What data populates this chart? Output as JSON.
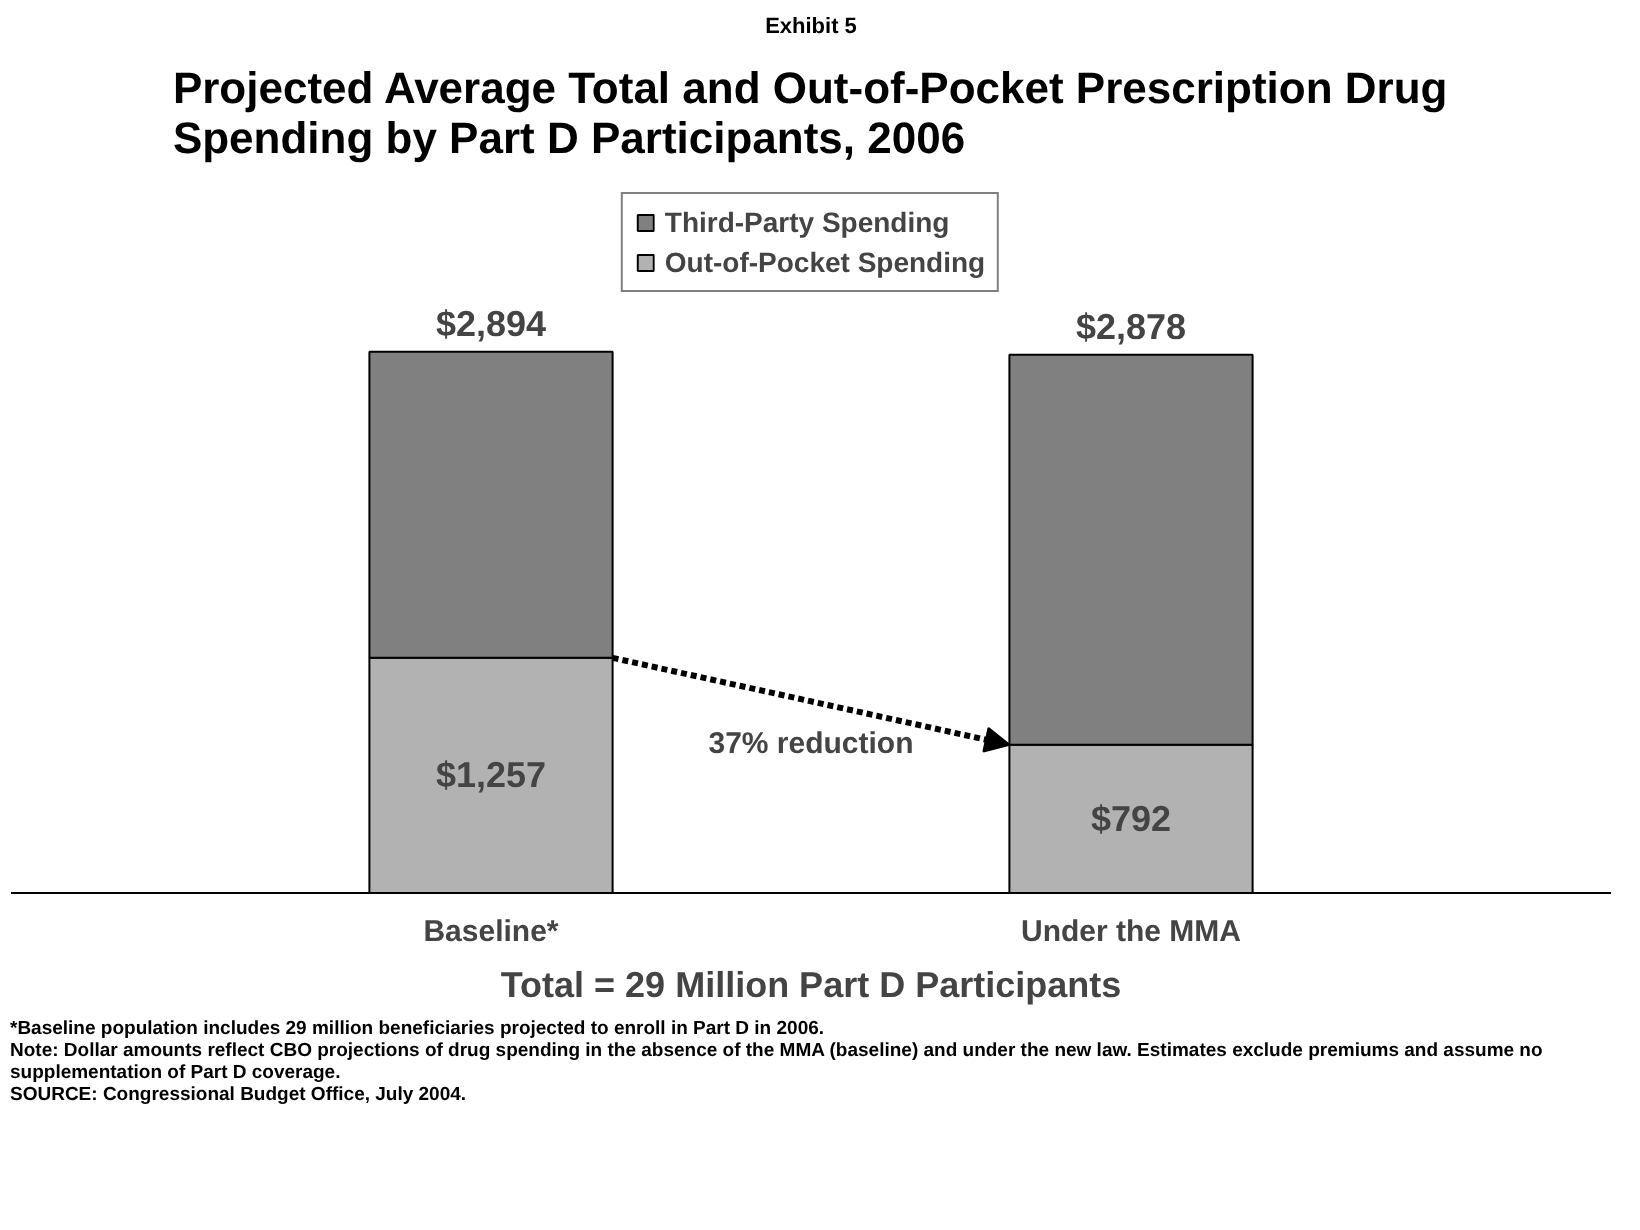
{
  "chart_data": {
    "type": "bar",
    "stacked": true,
    "subtitle": "Exhibit 5",
    "title": "Projected Average Total and Out-of-Pocket Prescription Drug Spending by Part D Participants, 2006",
    "xlabel": "Total = 29 Million Part D Participants",
    "categories": [
      "Baseline*",
      "Under the MMA"
    ],
    "series": [
      {
        "name": "Out-of-Pocket Spending",
        "color": "#b2b2b2",
        "values": [
          1257,
          792
        ],
        "value_labels": [
          "$1,257",
          "$792"
        ]
      },
      {
        "name": "Third-Party Spending",
        "color": "#808080",
        "values": [
          1637,
          2086
        ]
      }
    ],
    "totals": [
      "$2,894",
      "$2,878"
    ],
    "legend": "top",
    "annotations": [
      "37% reduction",
      "*Baseline population includes 29 million beneficiaries projected to enroll in Part D in 2006.",
      "Note: Dollar amounts reflect CBO projections of drug spending in the absence of the MMA (baseline) and under the new law. Estimates exclude premiums and assume no supplementation of Part D coverage.",
      "SOURCE: Congressional Budget Office, July 2004."
    ]
  }
}
